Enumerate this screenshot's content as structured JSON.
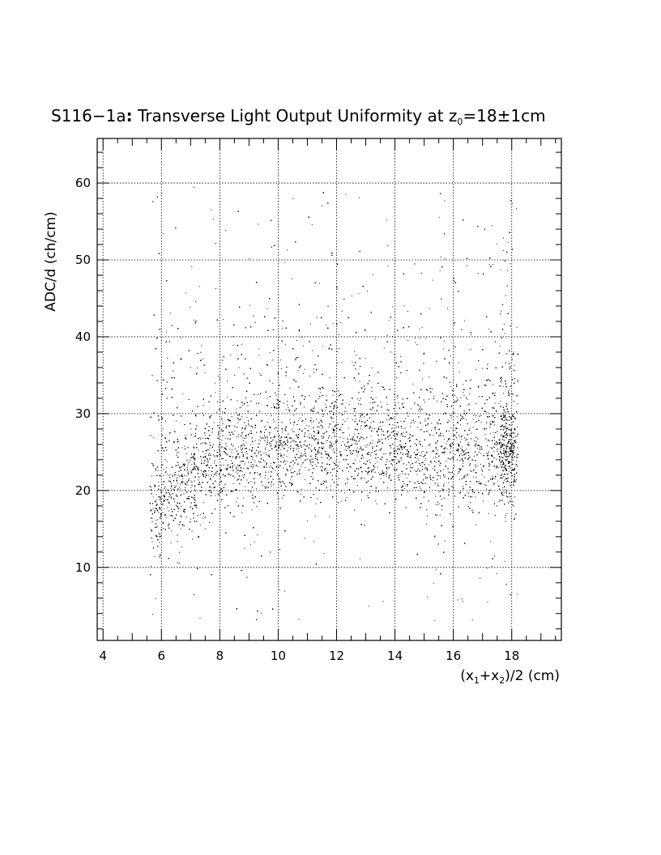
{
  "chart_data": {
    "type": "scatter",
    "title": {
      "prefix": "S116−1a",
      "colon": ":",
      "main": " Transverse Light Output Uniformity at z",
      "sub": "0",
      "suffix": "=18±1cm"
    },
    "xlabel": {
      "open": "(x",
      "sub1": "1",
      "mid": "+x",
      "sub2": "2",
      "close": ")/2 (cm)"
    },
    "ylabel": "ADC/d (ch/cm)",
    "xlim": [
      3.8,
      19.7
    ],
    "ylim": [
      0.5,
      65.8
    ],
    "x_ticks": [
      4,
      6,
      8,
      10,
      12,
      14,
      16,
      18
    ],
    "x_tick_labels": [
      "4",
      "6",
      "8",
      "10",
      "12",
      "14",
      "16",
      "18"
    ],
    "y_ticks": [
      10,
      20,
      30,
      40,
      50,
      60
    ],
    "y_tick_labels": [
      "10",
      "20",
      "30",
      "40",
      "50",
      "60"
    ],
    "grid": true,
    "point_color": "#000000",
    "distribution": {
      "x_range": [
        5.6,
        18.2
      ],
      "band_center_profile": [
        [
          5.8,
          18
        ],
        [
          6.5,
          20
        ],
        [
          7.5,
          22.5
        ],
        [
          9,
          24.5
        ],
        [
          10,
          25.5
        ],
        [
          12,
          26
        ],
        [
          13,
          25.5
        ],
        [
          14,
          25
        ],
        [
          15,
          24.5
        ],
        [
          16,
          24
        ],
        [
          17,
          24
        ],
        [
          18,
          25
        ]
      ],
      "band_spread": 3.2,
      "sparse_y_range": [
        3,
        59
      ],
      "sampled_points": [
        [
          5.9,
          17.2
        ],
        [
          6.1,
          19.4
        ],
        [
          6.3,
          16.8
        ],
        [
          6.6,
          20.5
        ],
        [
          7.0,
          21.3
        ],
        [
          7.4,
          22.1
        ],
        [
          7.8,
          23.6
        ],
        [
          8.2,
          24.0
        ],
        [
          8.7,
          23.8
        ],
        [
          9.1,
          25.2
        ],
        [
          9.5,
          24.9
        ],
        [
          10.0,
          25.7
        ],
        [
          10.4,
          26.3
        ],
        [
          10.9,
          25.1
        ],
        [
          11.3,
          26.8
        ],
        [
          11.8,
          25.9
        ],
        [
          12.2,
          26.4
        ],
        [
          12.7,
          25.6
        ],
        [
          13.1,
          26.0
        ],
        [
          13.6,
          24.8
        ],
        [
          14.0,
          25.3
        ],
        [
          14.5,
          24.4
        ],
        [
          14.9,
          25.0
        ],
        [
          15.4,
          23.7
        ],
        [
          15.8,
          24.2
        ],
        [
          16.3,
          23.9
        ],
        [
          16.7,
          24.5
        ],
        [
          17.2,
          23.6
        ],
        [
          17.6,
          25.4
        ],
        [
          18.0,
          26.1
        ],
        [
          6.0,
          58.7
        ],
        [
          7.1,
          59.5
        ],
        [
          10.5,
          58.0
        ],
        [
          12.3,
          58.6
        ],
        [
          13.7,
          55.2
        ],
        [
          15.5,
          55.6
        ],
        [
          17.3,
          54.5
        ],
        [
          18.0,
          57.4
        ],
        [
          9.0,
          50.2
        ],
        [
          11.4,
          47.0
        ],
        [
          8.1,
          42.3
        ],
        [
          14.3,
          44.1
        ],
        [
          16.6,
          40.3
        ],
        [
          12.8,
          36.2
        ],
        [
          9.8,
          34.0
        ],
        [
          7.1,
          6.5
        ],
        [
          9.4,
          4.1
        ],
        [
          10.7,
          3.3
        ],
        [
          13.1,
          5.0
        ],
        [
          15.1,
          6.2
        ],
        [
          16.9,
          8.7
        ],
        [
          6.6,
          12.0
        ],
        [
          15.4,
          9.8
        ],
        [
          17.3,
          10.2
        ],
        [
          11.2,
          13.4
        ]
      ],
      "total_points": 16000
    }
  }
}
